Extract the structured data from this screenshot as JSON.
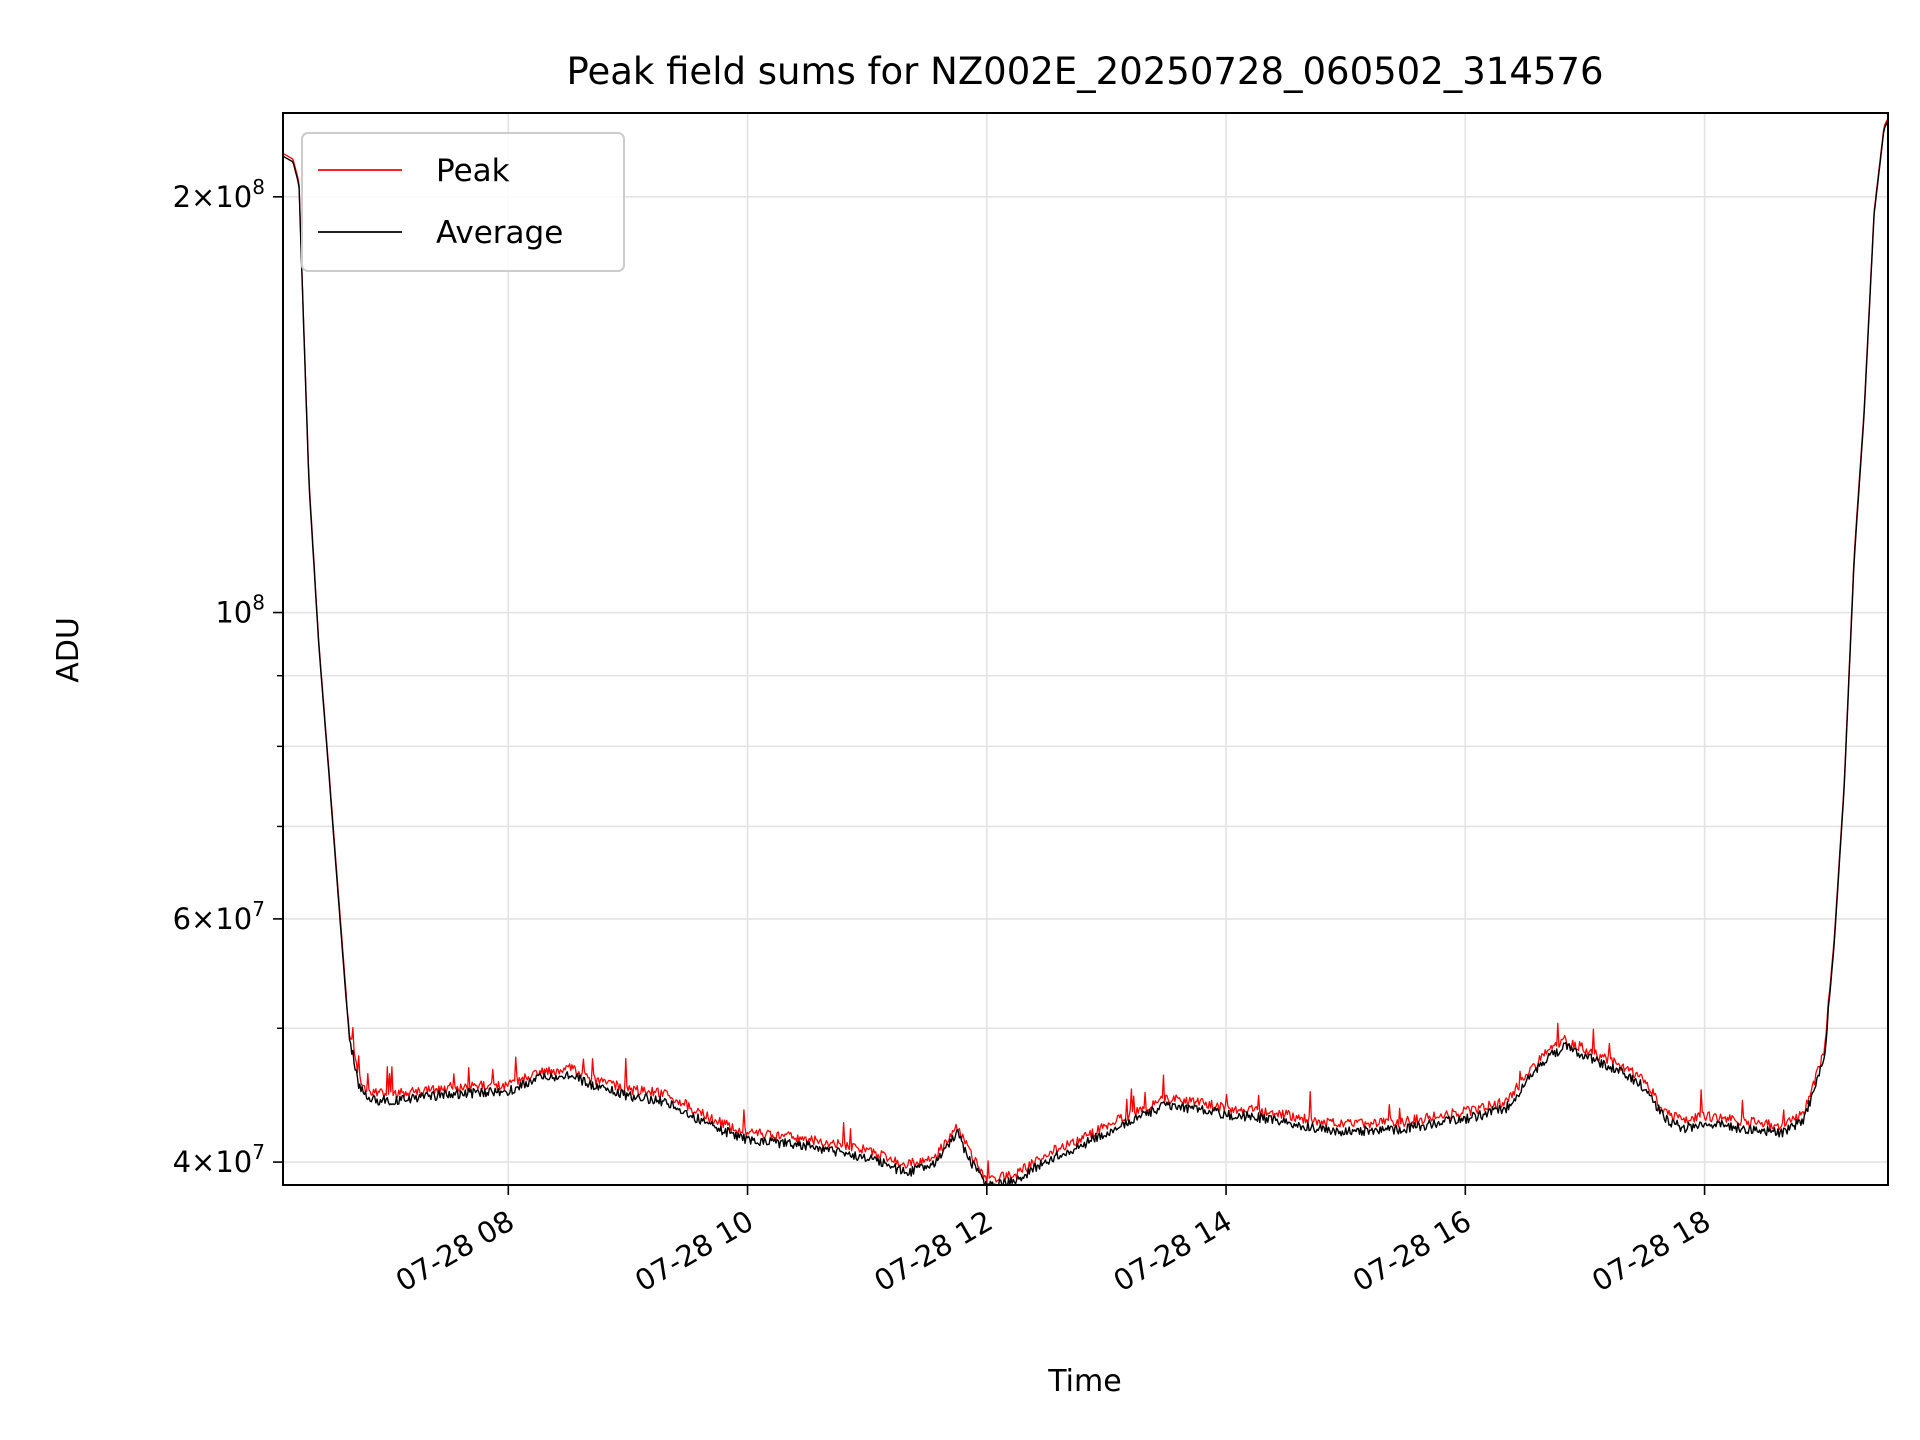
{
  "chart_data": {
    "type": "line",
    "title": "Peak field sums for NZ002E_20250728_060502_314576",
    "xlabel": "Time",
    "ylabel": "ADU",
    "yscale": "log",
    "ylim": [
      38500000,
      230000000
    ],
    "xlim": [
      "2025-07-28T06:07",
      "2025-07-28T19:32"
    ],
    "grid": true,
    "legend_position": "top-left",
    "x_ticks": [
      {
        "value": "2025-07-28T08:00",
        "label": "07-28 08"
      },
      {
        "value": "2025-07-28T10:00",
        "label": "07-28 10"
      },
      {
        "value": "2025-07-28T12:00",
        "label": "07-28 12"
      },
      {
        "value": "2025-07-28T14:00",
        "label": "07-28 14"
      },
      {
        "value": "2025-07-28T16:00",
        "label": "07-28 16"
      },
      {
        "value": "2025-07-28T18:00",
        "label": "07-28 18"
      }
    ],
    "y_ticks": [
      {
        "value": 40000000,
        "mantissa": "4",
        "exponent": "7"
      },
      {
        "value": 60000000,
        "mantissa": "6",
        "exponent": "7"
      },
      {
        "value": 100000000,
        "mantissa": "",
        "exponent": "8"
      },
      {
        "value": 200000000,
        "mantissa": "2",
        "exponent": "8"
      }
    ],
    "y_minor_ticks": [
      50000000,
      70000000,
      80000000,
      90000000
    ],
    "series": [
      {
        "name": "Peak",
        "color": "#ff0000",
        "x": [
          "2025-07-28T06:07",
          "2025-07-28T06:12",
          "2025-07-28T06:15",
          "2025-07-28T06:20",
          "2025-07-28T06:25",
          "2025-07-28T06:30",
          "2025-07-28T06:35",
          "2025-07-28T06:40",
          "2025-07-28T06:45",
          "2025-07-28T06:50",
          "2025-07-28T07:00",
          "2025-07-28T07:15",
          "2025-07-28T07:30",
          "2025-07-28T08:00",
          "2025-07-28T08:15",
          "2025-07-28T08:30",
          "2025-07-28T08:45",
          "2025-07-28T09:00",
          "2025-07-28T09:20",
          "2025-07-28T09:35",
          "2025-07-28T09:45",
          "2025-07-28T10:00",
          "2025-07-28T10:30",
          "2025-07-28T11:00",
          "2025-07-28T11:20",
          "2025-07-28T11:35",
          "2025-07-28T11:45",
          "2025-07-28T11:52",
          "2025-07-28T12:00",
          "2025-07-28T12:15",
          "2025-07-28T12:30",
          "2025-07-28T12:45",
          "2025-07-28T13:00",
          "2025-07-28T13:15",
          "2025-07-28T13:30",
          "2025-07-28T13:45",
          "2025-07-28T14:00",
          "2025-07-28T14:15",
          "2025-07-28T14:30",
          "2025-07-28T14:45",
          "2025-07-28T15:00",
          "2025-07-28T15:30",
          "2025-07-28T16:00",
          "2025-07-28T16:20",
          "2025-07-28T16:40",
          "2025-07-28T16:50",
          "2025-07-28T17:00",
          "2025-07-28T17:20",
          "2025-07-28T17:30",
          "2025-07-28T17:40",
          "2025-07-28T17:50",
          "2025-07-28T18:00",
          "2025-07-28T18:20",
          "2025-07-28T18:40",
          "2025-07-28T18:50",
          "2025-07-28T19:00",
          "2025-07-28T19:05",
          "2025-07-28T19:10",
          "2025-07-28T19:15",
          "2025-07-28T19:20",
          "2025-07-28T19:25",
          "2025-07-28T19:30",
          "2025-07-28T19:32"
        ],
        "values": [
          215000000,
          213000000,
          205000000,
          125000000,
          95000000,
          77000000,
          62000000,
          50000000,
          46000000,
          45000000,
          44800000,
          45000000,
          45300000,
          45500000,
          46500000,
          46800000,
          45800000,
          45200000,
          44800000,
          43500000,
          42800000,
          42000000,
          41600000,
          40800000,
          39800000,
          40500000,
          42500000,
          40500000,
          38800000,
          39200000,
          40600000,
          41500000,
          42500000,
          43500000,
          44500000,
          44200000,
          43800000,
          43600000,
          43300000,
          42800000,
          42600000,
          42800000,
          43500000,
          44200000,
          48000000,
          49000000,
          48300000,
          46800000,
          45800000,
          43500000,
          42800000,
          43200000,
          42800000,
          42500000,
          43500000,
          48000000,
          58000000,
          75000000,
          110000000,
          140000000,
          195000000,
          225000000,
          228000000
        ]
      },
      {
        "name": "Average",
        "color": "#000000",
        "x": [
          "2025-07-28T06:07",
          "2025-07-28T06:12",
          "2025-07-28T06:15",
          "2025-07-28T06:20",
          "2025-07-28T06:25",
          "2025-07-28T06:30",
          "2025-07-28T06:35",
          "2025-07-28T06:40",
          "2025-07-28T06:45",
          "2025-07-28T06:50",
          "2025-07-28T07:00",
          "2025-07-28T07:15",
          "2025-07-28T07:30",
          "2025-07-28T08:00",
          "2025-07-28T08:15",
          "2025-07-28T08:30",
          "2025-07-28T08:45",
          "2025-07-28T09:00",
          "2025-07-28T09:20",
          "2025-07-28T09:35",
          "2025-07-28T09:45",
          "2025-07-28T10:00",
          "2025-07-28T10:30",
          "2025-07-28T11:00",
          "2025-07-28T11:20",
          "2025-07-28T11:35",
          "2025-07-28T11:45",
          "2025-07-28T11:52",
          "2025-07-28T12:00",
          "2025-07-28T12:15",
          "2025-07-28T12:30",
          "2025-07-28T12:45",
          "2025-07-28T13:00",
          "2025-07-28T13:15",
          "2025-07-28T13:30",
          "2025-07-28T13:45",
          "2025-07-28T14:00",
          "2025-07-28T14:15",
          "2025-07-28T14:30",
          "2025-07-28T14:45",
          "2025-07-28T15:00",
          "2025-07-28T15:30",
          "2025-07-28T16:00",
          "2025-07-28T16:20",
          "2025-07-28T16:40",
          "2025-07-28T16:50",
          "2025-07-28T17:00",
          "2025-07-28T17:20",
          "2025-07-28T17:30",
          "2025-07-28T17:40",
          "2025-07-28T17:50",
          "2025-07-28T18:00",
          "2025-07-28T18:20",
          "2025-07-28T18:40",
          "2025-07-28T18:50",
          "2025-07-28T19:00",
          "2025-07-28T19:05",
          "2025-07-28T19:10",
          "2025-07-28T19:15",
          "2025-07-28T19:20",
          "2025-07-28T19:25",
          "2025-07-28T19:30",
          "2025-07-28T19:32"
        ],
        "values": [
          214000000,
          212000000,
          204000000,
          124000000,
          94500000,
          76500000,
          61500000,
          49500000,
          45500000,
          44400000,
          44300000,
          44500000,
          44800000,
          45000000,
          46000000,
          46300000,
          45300000,
          44700000,
          44200000,
          43000000,
          42300000,
          41500000,
          41100000,
          40300000,
          39300000,
          40000000,
          42000000,
          40000000,
          38400000,
          38800000,
          40100000,
          41000000,
          42000000,
          43000000,
          44000000,
          43700000,
          43300000,
          43100000,
          42800000,
          42300000,
          42100000,
          42300000,
          43000000,
          43700000,
          47500000,
          48500000,
          47800000,
          46300000,
          45300000,
          43000000,
          42300000,
          42700000,
          42300000,
          42000000,
          43000000,
          47500000,
          57500000,
          74500000,
          109000000,
          139000000,
          194000000,
          224000000,
          227000000
        ]
      }
    ]
  }
}
